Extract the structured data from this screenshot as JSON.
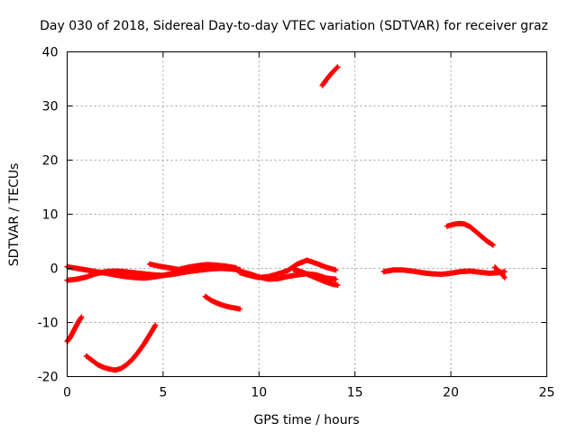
{
  "chart_data": {
    "type": "scatter",
    "title": "Day 030 of 2018, Sidereal Day-to-day VTEC variation (SDTVAR) for receiver graz",
    "xlabel": "GPS time / hours",
    "ylabel": "SDTVAR / TECUs",
    "xlim": [
      0,
      25
    ],
    "ylim": [
      -20,
      40
    ],
    "xticks": [
      0,
      5,
      10,
      15,
      20,
      25
    ],
    "yticks": [
      -20,
      -10,
      0,
      10,
      20,
      30,
      40
    ],
    "grid": true,
    "marker": "plus",
    "color": "#ff0000",
    "series": [
      {
        "name": "s1",
        "x": [
          0.0,
          0.15,
          0.3,
          0.45,
          0.6,
          0.75
        ],
        "y": [
          -13.5,
          -12.8,
          -11.8,
          -10.8,
          -9.8,
          -9.0
        ]
      },
      {
        "name": "s2",
        "x": [
          1.0,
          1.3,
          1.6,
          1.9,
          2.2,
          2.5,
          2.8,
          3.1,
          3.4,
          3.7,
          4.0,
          4.3,
          4.6
        ],
        "y": [
          -16.2,
          -17.0,
          -17.8,
          -18.3,
          -18.6,
          -18.8,
          -18.5,
          -17.8,
          -16.8,
          -15.5,
          -14.0,
          -12.3,
          -10.5
        ]
      },
      {
        "name": "s3",
        "x": [
          0.0,
          0.5,
          1.0,
          1.5,
          2.0,
          2.5,
          3.0,
          3.5,
          4.0,
          4.5,
          5.0,
          5.5,
          6.0,
          6.5,
          7.0,
          7.5,
          8.0,
          8.5,
          9.0
        ],
        "y": [
          -2.2,
          -2.0,
          -1.6,
          -1.0,
          -0.6,
          -0.5,
          -0.6,
          -0.8,
          -1.0,
          -1.2,
          -1.3,
          -1.1,
          -0.8,
          -0.5,
          -0.3,
          -0.1,
          0.0,
          -0.1,
          -0.3
        ]
      },
      {
        "name": "s4",
        "x": [
          0.0,
          0.5,
          1.0,
          1.5,
          2.0,
          2.5,
          3.0,
          3.5,
          4.0,
          4.5,
          5.0,
          5.5,
          6.0,
          6.5,
          7.0,
          7.5,
          8.0,
          8.5,
          9.0
        ],
        "y": [
          0.3,
          0.0,
          -0.3,
          -0.6,
          -0.9,
          -1.2,
          -1.5,
          -1.7,
          -1.8,
          -1.6,
          -1.3,
          -0.9,
          -0.5,
          -0.2,
          0.0,
          0.1,
          0.2,
          0.0,
          -0.2
        ]
      },
      {
        "name": "s5",
        "x": [
          4.3,
          4.8,
          5.3,
          5.8,
          6.3,
          6.8,
          7.3,
          7.8,
          8.3,
          8.8
        ],
        "y": [
          0.8,
          0.4,
          0.1,
          -0.2,
          0.2,
          0.5,
          0.7,
          0.6,
          0.4,
          0.1
        ]
      },
      {
        "name": "s6",
        "x": [
          7.2,
          7.5,
          7.8,
          8.1,
          8.4,
          8.7,
          9.0
        ],
        "y": [
          -5.2,
          -5.9,
          -6.4,
          -6.8,
          -7.1,
          -7.3,
          -7.5
        ]
      },
      {
        "name": "s7",
        "x": [
          9.0,
          9.5,
          10.0,
          10.5,
          11.0,
          11.5,
          12.0,
          12.5,
          13.0,
          13.5,
          14.0
        ],
        "y": [
          -0.5,
          -1.0,
          -1.6,
          -2.0,
          -1.9,
          -1.5,
          -1.2,
          -1.0,
          -1.2,
          -1.8,
          -2.0
        ]
      },
      {
        "name": "s8",
        "x": [
          9.0,
          9.5,
          10.0,
          10.5,
          11.0,
          11.5,
          12.0,
          12.5,
          13.0,
          13.5,
          14.0
        ],
        "y": [
          -0.8,
          -1.3,
          -1.7,
          -1.5,
          -1.0,
          -0.4,
          0.8,
          1.5,
          0.9,
          0.2,
          -0.3
        ]
      },
      {
        "name": "s9",
        "x": [
          11.8,
          12.2,
          12.6,
          13.0,
          13.4,
          13.8,
          14.1
        ],
        "y": [
          -0.2,
          -0.6,
          -1.2,
          -1.8,
          -2.4,
          -2.9,
          -3.1
        ]
      },
      {
        "name": "s10",
        "x": [
          13.3,
          13.5,
          13.7,
          13.9,
          14.1
        ],
        "y": [
          33.8,
          34.8,
          35.7,
          36.5,
          37.2
        ]
      },
      {
        "name": "s11",
        "x": [
          16.5,
          17.0,
          17.5,
          18.0,
          18.5,
          19.0,
          19.5,
          20.0,
          20.5,
          21.0,
          21.5,
          22.0,
          22.5,
          22.8
        ],
        "y": [
          -0.6,
          -0.3,
          -0.3,
          -0.5,
          -0.8,
          -1.0,
          -1.1,
          -0.9,
          -0.6,
          -0.5,
          -0.7,
          -0.9,
          -0.8,
          -0.6
        ]
      },
      {
        "name": "s12",
        "x": [
          22.3,
          22.5,
          22.7,
          22.8
        ],
        "y": [
          0.2,
          -0.5,
          -1.2,
          -1.7
        ]
      },
      {
        "name": "s13",
        "x": [
          19.8,
          20.1,
          20.4,
          20.7,
          21.0,
          21.3,
          21.6,
          21.9,
          22.2
        ],
        "y": [
          7.8,
          8.1,
          8.3,
          8.2,
          7.7,
          6.8,
          5.9,
          5.0,
          4.3
        ]
      }
    ]
  }
}
